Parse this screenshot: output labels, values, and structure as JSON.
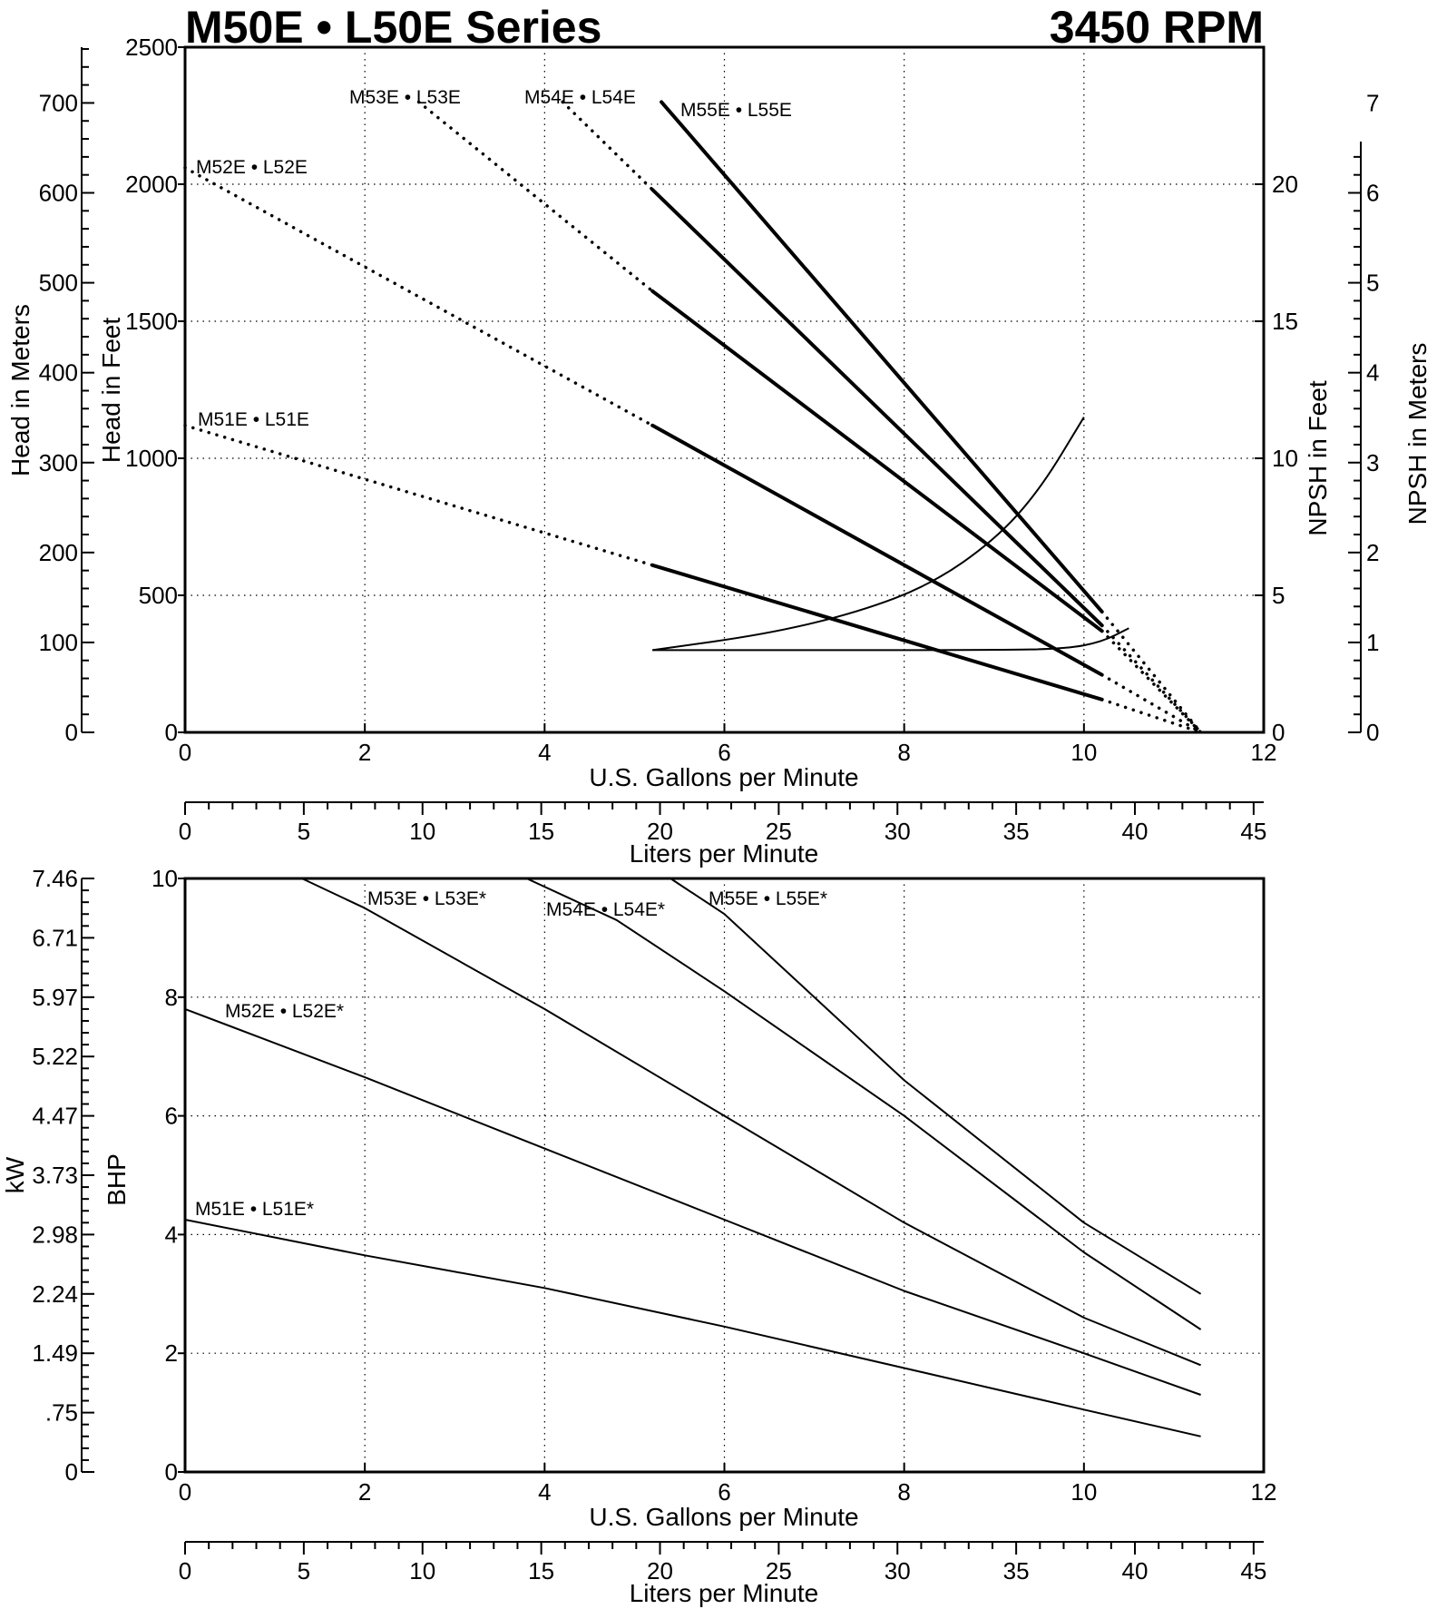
{
  "header": {
    "title": "M50E • L50E Series",
    "speed": "3450 RPM"
  },
  "chart_data": [
    {
      "type": "line",
      "panel": "head",
      "xlabel": "U.S. Gallons per Minute",
      "xlabel_secondary": "Liters per Minute",
      "ylabel_left_outer": "Head in Meters",
      "ylabel_left": "Head in Feet",
      "ylabel_right": "NPSH in Feet",
      "ylabel_right_outer": "NPSH in Meters",
      "xlim": [
        0,
        12
      ],
      "ylim": [
        0,
        2500
      ],
      "x_ticks": [
        0,
        2,
        4,
        6,
        8,
        10,
        12
      ],
      "x_ticks_secondary": [
        "0",
        "5",
        "10",
        "15",
        "20",
        "25",
        "30",
        "35",
        "40",
        "45"
      ],
      "y_ticks": [
        "0",
        "500",
        "1000",
        "1500",
        "2000",
        "2500"
      ],
      "y_ticks_meters": [
        "0",
        "100",
        "200",
        "300",
        "400",
        "500",
        "600",
        "700"
      ],
      "y_ticks_npsh_ft": [
        "0",
        "5",
        "10",
        "15",
        "20"
      ],
      "y_ticks_npsh_m": [
        "0",
        "1",
        "2",
        "3",
        "4",
        "5",
        "6",
        "7"
      ],
      "grid": true,
      "series": [
        {
          "name": "M51E • L51E",
          "dotted": [
            [
              0,
              1120
            ],
            [
              5.2,
              610
            ]
          ],
          "solid": [
            [
              5.2,
              610
            ],
            [
              10.2,
              120
            ]
          ],
          "dotted_end": [
            [
              10.2,
              120
            ],
            [
              11.3,
              0
            ]
          ]
        },
        {
          "name": "M52E • L52E",
          "dotted": [
            [
              0,
              2060
            ],
            [
              5.2,
              1120
            ]
          ],
          "solid": [
            [
              5.2,
              1120
            ],
            [
              10.2,
              210
            ]
          ],
          "dotted_end": [
            [
              10.2,
              210
            ],
            [
              11.3,
              0
            ]
          ]
        },
        {
          "name": "M53E • L53E",
          "dotted": [
            [
              2.6,
              2300
            ],
            [
              5.2,
              1610
            ]
          ],
          "solid": [
            [
              5.2,
              1610
            ],
            [
              10.2,
              370
            ]
          ],
          "dotted_end": [
            [
              10.2,
              370
            ],
            [
              11.3,
              0
            ]
          ]
        },
        {
          "name": "M54E • L54E",
          "dotted": [
            [
              4.2,
              2300
            ],
            [
              5.2,
              1980
            ]
          ],
          "solid": [
            [
              5.2,
              1980
            ],
            [
              10.2,
              390
            ]
          ],
          "dotted_end": [
            [
              10.2,
              390
            ],
            [
              11.3,
              0
            ]
          ]
        },
        {
          "name": "M55E • L55E",
          "dotted": [],
          "solid": [
            [
              5.3,
              2300
            ],
            [
              10.2,
              440
            ]
          ],
          "dotted_end": [
            [
              10.2,
              440
            ],
            [
              11.3,
              0
            ]
          ]
        }
      ],
      "npsh_curves": [
        {
          "points": [
            [
              5.2,
              3.0
            ],
            [
              6.5,
              3.6
            ],
            [
              7.5,
              4.4
            ],
            [
              8.3,
              5.4
            ],
            [
              9.0,
              7.0
            ],
            [
              9.5,
              8.8
            ],
            [
              10.0,
              11.5
            ]
          ]
        },
        {
          "points": [
            [
              5.2,
              3.0
            ],
            [
              9.0,
              3.0
            ],
            [
              9.8,
              3.05
            ],
            [
              10.2,
              3.3
            ],
            [
              10.5,
              3.8
            ]
          ]
        }
      ]
    },
    {
      "type": "line",
      "panel": "power",
      "xlabel": "U.S. Gallons per Minute",
      "xlabel_secondary": "Liters per Minute",
      "ylabel_left_outer": "kW",
      "ylabel_left": "BHP",
      "xlim": [
        0,
        12
      ],
      "ylim": [
        0,
        10
      ],
      "x_ticks": [
        0,
        2,
        4,
        6,
        8,
        10,
        12
      ],
      "x_ticks_secondary": [
        "0",
        "5",
        "10",
        "15",
        "20",
        "25",
        "30",
        "35",
        "40",
        "45"
      ],
      "y_ticks": [
        "0",
        "2",
        "4",
        "6",
        "8",
        "10"
      ],
      "y_ticks_kw": [
        "0",
        ".75",
        "1.49",
        "2.24",
        "2.98",
        "3.73",
        "4.47",
        "5.22",
        "5.97",
        "6.71",
        "7.46"
      ],
      "grid": true,
      "series": [
        {
          "name": "M51E • L51E*",
          "points": [
            [
              0,
              4.25
            ],
            [
              2,
              3.65
            ],
            [
              4,
              3.1
            ],
            [
              6,
              2.45
            ],
            [
              8,
              1.75
            ],
            [
              10,
              1.05
            ],
            [
              11.3,
              0.6
            ]
          ]
        },
        {
          "name": "M52E • L52E*",
          "points": [
            [
              0,
              7.8
            ],
            [
              2,
              6.65
            ],
            [
              4,
              5.45
            ],
            [
              6,
              4.25
            ],
            [
              8,
              3.05
            ],
            [
              10,
              2.0
            ],
            [
              11.3,
              1.3
            ]
          ]
        },
        {
          "name": "M53E • L53E*",
          "points": [
            [
              1.3,
              10.0
            ],
            [
              2,
              9.5
            ],
            [
              4,
              7.8
            ],
            [
              6,
              6.0
            ],
            [
              8,
              4.2
            ],
            [
              10,
              2.6
            ],
            [
              11.3,
              1.8
            ]
          ]
        },
        {
          "name": "M54E • L54E*",
          "points": [
            [
              3.8,
              10.0
            ],
            [
              4.8,
              9.3
            ],
            [
              6,
              8.1
            ],
            [
              8,
              6.0
            ],
            [
              10,
              3.7
            ],
            [
              11.3,
              2.4
            ]
          ]
        },
        {
          "name": "M55E • L55E*",
          "points": [
            [
              5.4,
              10.0
            ],
            [
              6,
              9.4
            ],
            [
              8,
              6.6
            ],
            [
              10,
              4.2
            ],
            [
              11.3,
              3.0
            ]
          ]
        }
      ]
    }
  ]
}
